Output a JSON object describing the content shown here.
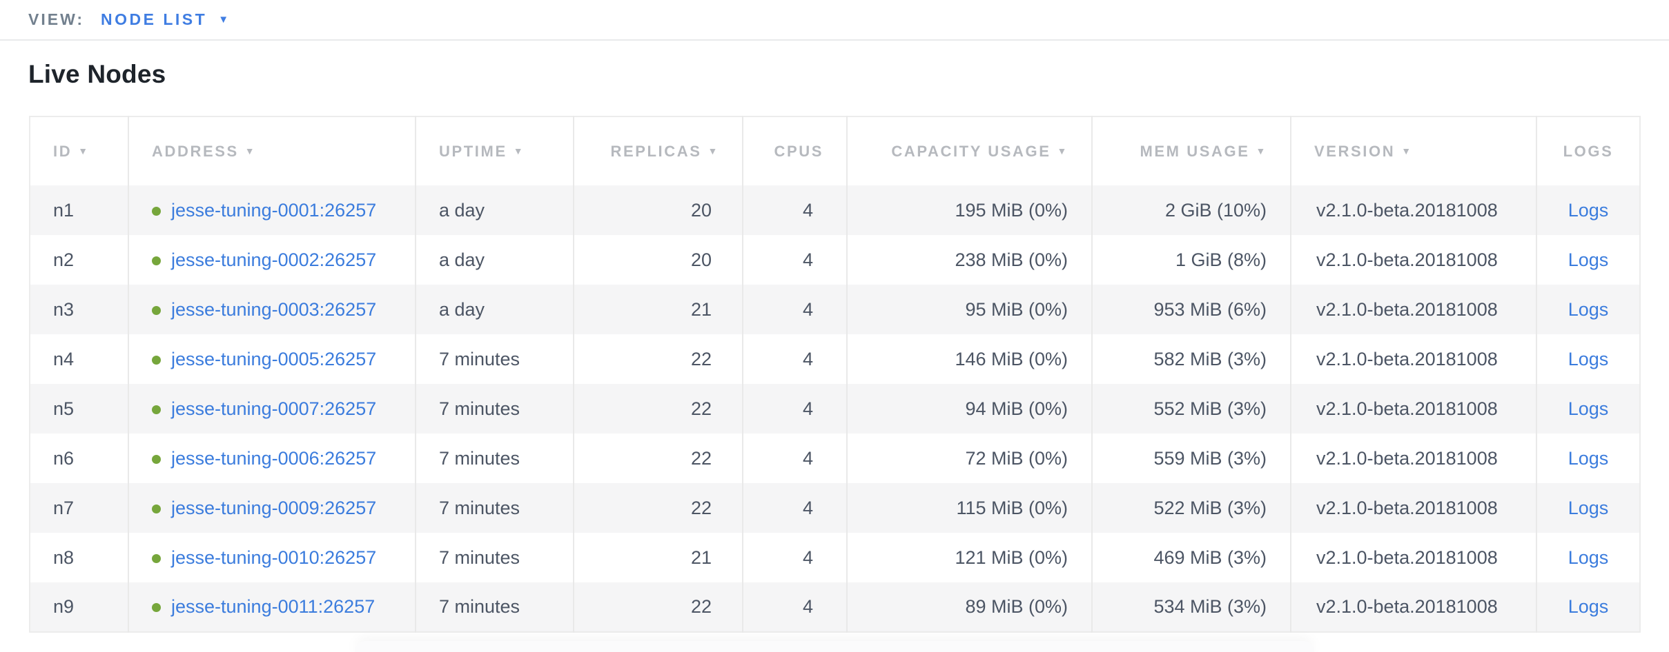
{
  "view_bar": {
    "label": "VIEW:",
    "selected": "NODE LIST"
  },
  "page": {
    "title": "Live Nodes"
  },
  "icons": {
    "sort": "▼",
    "dropdown": "▼",
    "live_dot": "live-status-dot"
  },
  "colors": {
    "link_blue": "#3b7cdd",
    "accent_blue": "#3f7de2",
    "live_green": "#76a63b",
    "header_gray": "#b6b9be",
    "cell_text": "#4c5564",
    "row_stripe": "#f5f5f6",
    "border": "#e9e9e9"
  },
  "table": {
    "logs_label": "Logs",
    "columns": [
      {
        "label": "ID",
        "key": "id",
        "sortable": true,
        "align": "left"
      },
      {
        "label": "ADDRESS",
        "key": "address",
        "sortable": true,
        "align": "left"
      },
      {
        "label": "UPTIME",
        "key": "uptime",
        "sortable": true,
        "align": "left"
      },
      {
        "label": "REPLICAS",
        "key": "replicas",
        "sortable": true,
        "align": "right"
      },
      {
        "label": "CPUS",
        "key": "cpus",
        "sortable": false,
        "align": "right"
      },
      {
        "label": "CAPACITY USAGE",
        "key": "capacity",
        "sortable": true,
        "align": "right"
      },
      {
        "label": "MEM USAGE",
        "key": "mem",
        "sortable": true,
        "align": "right"
      },
      {
        "label": "VERSION",
        "key": "version",
        "sortable": true,
        "align": "left"
      },
      {
        "label": "LOGS",
        "key": "logs",
        "sortable": false,
        "align": "center"
      }
    ],
    "rows": [
      {
        "id": "n1",
        "address": "jesse-tuning-0001:26257",
        "uptime": "a day",
        "replicas": "20",
        "cpus": "4",
        "capacity": "195 MiB (0%)",
        "mem": "2 GiB (10%)",
        "version": "v2.1.0-beta.20181008"
      },
      {
        "id": "n2",
        "address": "jesse-tuning-0002:26257",
        "uptime": "a day",
        "replicas": "20",
        "cpus": "4",
        "capacity": "238 MiB (0%)",
        "mem": "1 GiB (8%)",
        "version": "v2.1.0-beta.20181008"
      },
      {
        "id": "n3",
        "address": "jesse-tuning-0003:26257",
        "uptime": "a day",
        "replicas": "21",
        "cpus": "4",
        "capacity": "95 MiB (0%)",
        "mem": "953 MiB (6%)",
        "version": "v2.1.0-beta.20181008"
      },
      {
        "id": "n4",
        "address": "jesse-tuning-0005:26257",
        "uptime": "7 minutes",
        "replicas": "22",
        "cpus": "4",
        "capacity": "146 MiB (0%)",
        "mem": "582 MiB (3%)",
        "version": "v2.1.0-beta.20181008"
      },
      {
        "id": "n5",
        "address": "jesse-tuning-0007:26257",
        "uptime": "7 minutes",
        "replicas": "22",
        "cpus": "4",
        "capacity": "94 MiB (0%)",
        "mem": "552 MiB (3%)",
        "version": "v2.1.0-beta.20181008"
      },
      {
        "id": "n6",
        "address": "jesse-tuning-0006:26257",
        "uptime": "7 minutes",
        "replicas": "22",
        "cpus": "4",
        "capacity": "72 MiB (0%)",
        "mem": "559 MiB (3%)",
        "version": "v2.1.0-beta.20181008"
      },
      {
        "id": "n7",
        "address": "jesse-tuning-0009:26257",
        "uptime": "7 minutes",
        "replicas": "22",
        "cpus": "4",
        "capacity": "115 MiB (0%)",
        "mem": "522 MiB (3%)",
        "version": "v2.1.0-beta.20181008"
      },
      {
        "id": "n8",
        "address": "jesse-tuning-0010:26257",
        "uptime": "7 minutes",
        "replicas": "21",
        "cpus": "4",
        "capacity": "121 MiB (0%)",
        "mem": "469 MiB (3%)",
        "version": "v2.1.0-beta.20181008"
      },
      {
        "id": "n9",
        "address": "jesse-tuning-0011:26257",
        "uptime": "7 minutes",
        "replicas": "22",
        "cpus": "4",
        "capacity": "89 MiB (0%)",
        "mem": "534 MiB (3%)",
        "version": "v2.1.0-beta.20181008"
      }
    ]
  }
}
